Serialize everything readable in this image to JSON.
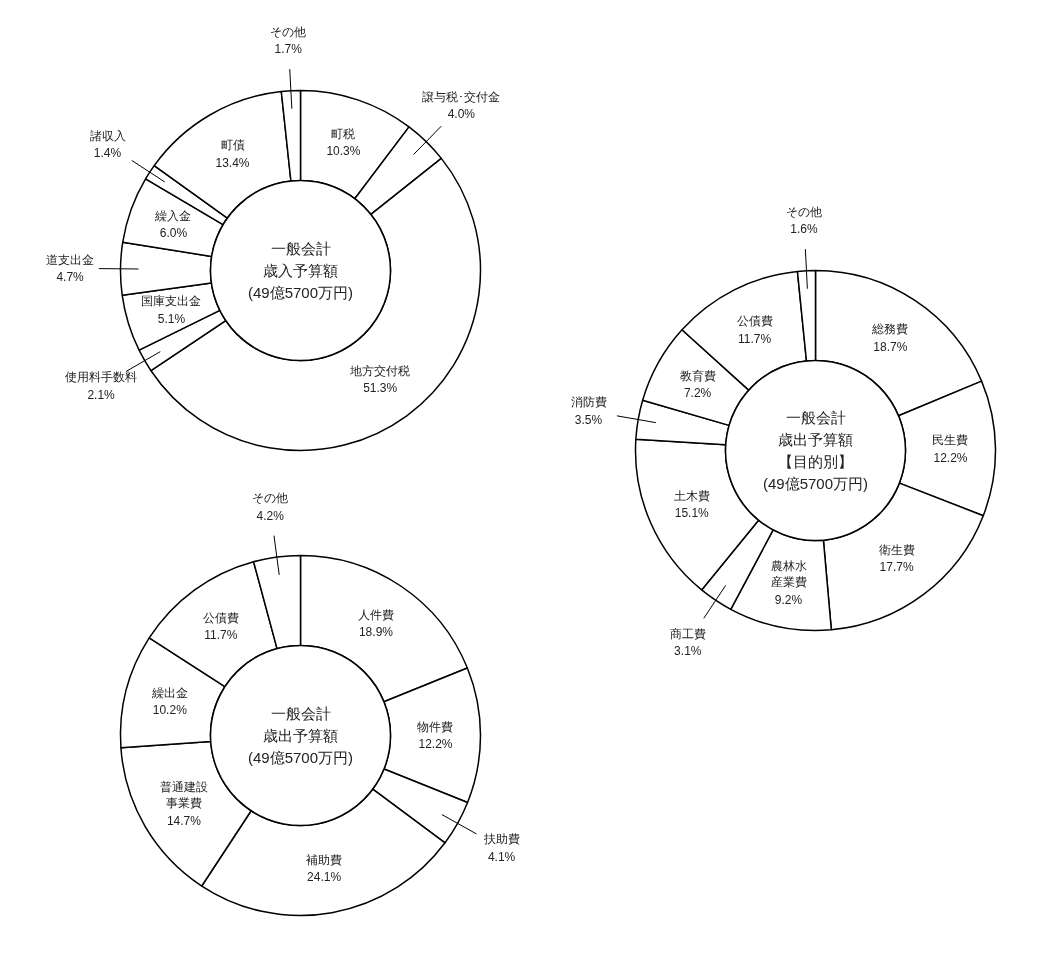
{
  "chart_data": [
    {
      "type": "donut",
      "title": "一般会計",
      "subtitle": "歳入予算額",
      "annotations": [
        "(49億5700万円)"
      ],
      "categories": [
        "町税",
        "譲与税･交付金",
        "地方交付税",
        "使用料手数料",
        "国庫支出金",
        "道支出金",
        "繰入金",
        "諸収入",
        "町債",
        "その他"
      ],
      "values": [
        10.3,
        4.0,
        51.3,
        2.1,
        5.1,
        4.7,
        6.0,
        1.4,
        13.4,
        1.7
      ],
      "value_labels": [
        "10.3%",
        "4.0%",
        "51.3%",
        "2.1%",
        "5.1%",
        "4.7%",
        "6.0%",
        "1.4%",
        "13.4%",
        "1.7%"
      ],
      "colors": [
        "#ffffff",
        "#ffffff",
        "#ffffff",
        "#ffffff",
        "#ffffff",
        "#ffffff",
        "#ffffff",
        "#ffffff",
        "#ffffff",
        "#ffffff"
      ]
    },
    {
      "type": "donut",
      "title": "一般会計",
      "subtitle": "歳出予算額",
      "annotations": [
        "(49億5700万円)"
      ],
      "categories": [
        "人件費",
        "物件費",
        "扶助費",
        "補助費",
        "普通建設事業費",
        "繰出金",
        "公債費",
        "その他"
      ],
      "values": [
        18.9,
        12.2,
        4.1,
        24.1,
        14.7,
        10.2,
        11.7,
        4.2
      ],
      "value_labels": [
        "18.9%",
        "12.2%",
        "4.1%",
        "24.1%",
        "14.7%",
        "10.2%",
        "11.7%",
        "4.2%"
      ],
      "colors": [
        "#ffffff",
        "#ffffff",
        "#ffffff",
        "#ffffff",
        "#ffffff",
        "#ffffff",
        "#ffffff",
        "#ffffff"
      ]
    },
    {
      "type": "donut",
      "title": "一般会計",
      "subtitle": "歳出予算額",
      "annotations": [
        "【目的別】",
        "(49億5700万円)"
      ],
      "categories": [
        "総務費",
        "民生費",
        "衛生費",
        "農林水産業費",
        "商工費",
        "土木費",
        "消防費",
        "教育費",
        "公債費",
        "その他"
      ],
      "values": [
        18.7,
        12.2,
        17.7,
        9.2,
        3.1,
        15.1,
        3.5,
        7.2,
        11.7,
        1.6
      ],
      "value_labels": [
        "18.7%",
        "12.2%",
        "17.7%",
        "9.2%",
        "3.1%",
        "15.1%",
        "3.5%",
        "7.2%",
        "11.7%",
        "1.6%"
      ],
      "colors": [
        "#ffffff",
        "#ffffff",
        "#ffffff",
        "#ffffff",
        "#ffffff",
        "#ffffff",
        "#ffffff",
        "#ffffff",
        "#ffffff",
        "#ffffff"
      ]
    }
  ]
}
